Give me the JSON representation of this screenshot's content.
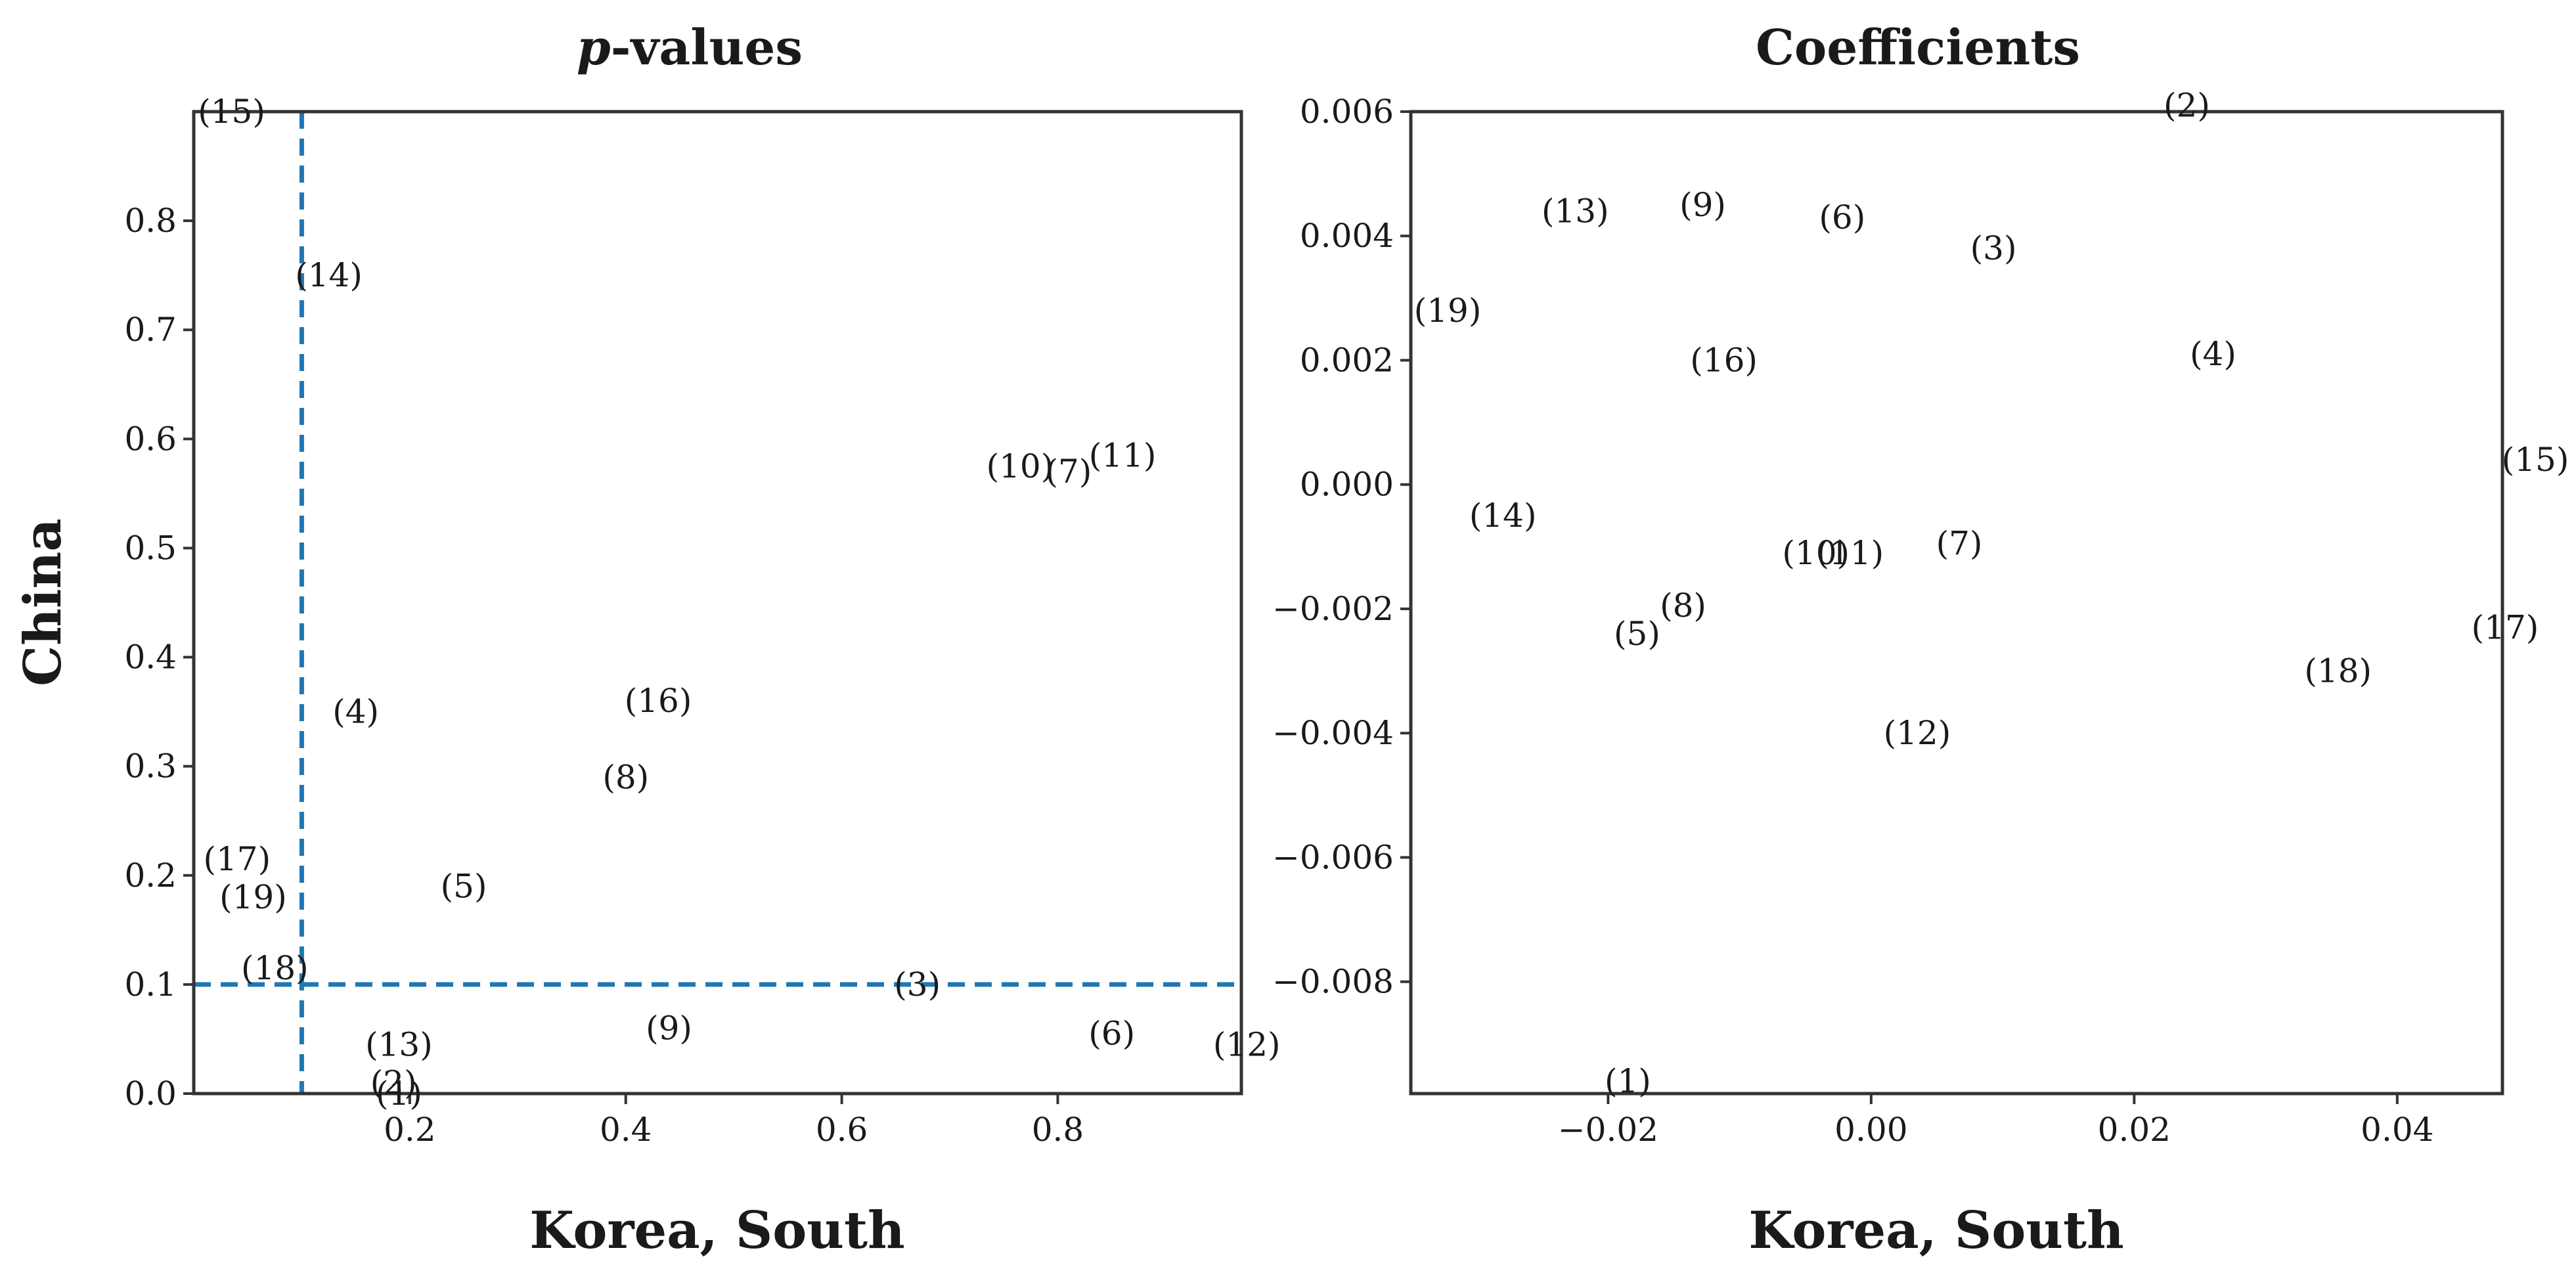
{
  "figure": {
    "threshold_color": "#1f77b4",
    "text_color": "#1a1a1a"
  },
  "chart_data": [
    {
      "type": "scatter",
      "title_prefix": "p",
      "title_suffix": "-values",
      "xlabel": "Korea, South",
      "ylabel": "China",
      "xlim": [
        0.0,
        0.97
      ],
      "ylim": [
        0.0,
        0.9
      ],
      "xticks": [
        0.2,
        0.4,
        0.6,
        0.8
      ],
      "xtick_labels": [
        "0.2",
        "0.4",
        "0.6",
        "0.8"
      ],
      "yticks": [
        0.0,
        0.1,
        0.2,
        0.3,
        0.4,
        0.5,
        0.6,
        0.7,
        0.8
      ],
      "ytick_labels": [
        "0.0",
        "0.1",
        "0.2",
        "0.3",
        "0.4",
        "0.5",
        "0.6",
        "0.7",
        "0.8"
      ],
      "threshold_lines": {
        "x": 0.1,
        "y": 0.1,
        "style": "dashed"
      },
      "points": [
        {
          "label": "(1)",
          "x": 0.19,
          "y": 0.0
        },
        {
          "label": "(2)",
          "x": 0.185,
          "y": 0.01
        },
        {
          "label": "(3)",
          "x": 0.67,
          "y": 0.1
        },
        {
          "label": "(4)",
          "x": 0.15,
          "y": 0.35
        },
        {
          "label": "(5)",
          "x": 0.25,
          "y": 0.19
        },
        {
          "label": "(6)",
          "x": 0.85,
          "y": 0.055
        },
        {
          "label": "(7)",
          "x": 0.81,
          "y": 0.57
        },
        {
          "label": "(8)",
          "x": 0.4,
          "y": 0.29
        },
        {
          "label": "(9)",
          "x": 0.44,
          "y": 0.06
        },
        {
          "label": "(10)",
          "x": 0.765,
          "y": 0.575
        },
        {
          "label": "(11)",
          "x": 0.86,
          "y": 0.585
        },
        {
          "label": "(12)",
          "x": 0.975,
          "y": 0.045
        },
        {
          "label": "(13)",
          "x": 0.19,
          "y": 0.045
        },
        {
          "label": "(14)",
          "x": 0.125,
          "y": 0.75
        },
        {
          "label": "(15)",
          "x": 0.035,
          "y": 0.9
        },
        {
          "label": "(16)",
          "x": 0.43,
          "y": 0.36
        },
        {
          "label": "(17)",
          "x": 0.04,
          "y": 0.215
        },
        {
          "label": "(18)",
          "x": 0.075,
          "y": 0.115
        },
        {
          "label": "(19)",
          "x": 0.055,
          "y": 0.18
        }
      ]
    },
    {
      "type": "scatter",
      "title": "Coefficients",
      "xlabel": "Korea, South",
      "ylabel": "",
      "xlim": [
        -0.035,
        0.048
      ],
      "ylim": [
        -0.0098,
        0.006
      ],
      "xticks": [
        -0.02,
        0.0,
        0.02,
        0.04
      ],
      "xtick_labels": [
        "−0.02",
        "0.00",
        "0.02",
        "0.04"
      ],
      "yticks": [
        0.006,
        0.004,
        0.002,
        0.0,
        -0.002,
        -0.004,
        -0.006,
        -0.008
      ],
      "ytick_labels": [
        "0.006",
        "0.004",
        "0.002",
        "0.000",
        "−0.002",
        "−0.004",
        "−0.006",
        "−0.008"
      ],
      "points": [
        {
          "label": "(1)",
          "x": -0.0185,
          "y": -0.0096
        },
        {
          "label": "(2)",
          "x": 0.024,
          "y": 0.0061
        },
        {
          "label": "(3)",
          "x": 0.0093,
          "y": 0.0038
        },
        {
          "label": "(4)",
          "x": 0.026,
          "y": 0.0021
        },
        {
          "label": "(5)",
          "x": -0.0178,
          "y": -0.0024
        },
        {
          "label": "(6)",
          "x": -0.0022,
          "y": 0.0043
        },
        {
          "label": "(7)",
          "x": 0.0067,
          "y": -0.00095
        },
        {
          "label": "(8)",
          "x": -0.0143,
          "y": -0.00195
        },
        {
          "label": "(9)",
          "x": -0.0128,
          "y": 0.0045
        },
        {
          "label": "(10)",
          "x": -0.0042,
          "y": -0.0011
        },
        {
          "label": "(11)",
          "x": -0.0016,
          "y": -0.0011
        },
        {
          "label": "(12)",
          "x": 0.0035,
          "y": -0.004
        },
        {
          "label": "(13)",
          "x": -0.0225,
          "y": 0.0044
        },
        {
          "label": "(14)",
          "x": -0.028,
          "y": -0.0005
        },
        {
          "label": "(15)",
          "x": 0.0505,
          "y": 0.0004
        },
        {
          "label": "(16)",
          "x": -0.0112,
          "y": 0.002
        },
        {
          "label": "(17)",
          "x": 0.0482,
          "y": -0.0023
        },
        {
          "label": "(18)",
          "x": 0.0355,
          "y": -0.003
        },
        {
          "label": "(19)",
          "x": -0.0322,
          "y": 0.0028
        }
      ]
    }
  ]
}
